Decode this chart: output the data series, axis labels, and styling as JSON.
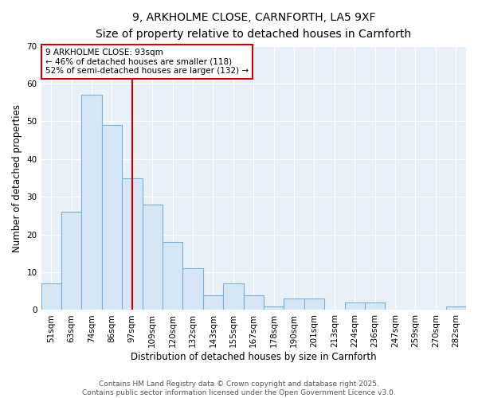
{
  "title_line1": "9, ARKHOLME CLOSE, CARNFORTH, LA5 9XF",
  "title_line2": "Size of property relative to detached houses in Carnforth",
  "xlabel": "Distribution of detached houses by size in Carnforth",
  "ylabel": "Number of detached properties",
  "bins": [
    "51sqm",
    "63sqm",
    "74sqm",
    "86sqm",
    "97sqm",
    "109sqm",
    "120sqm",
    "132sqm",
    "143sqm",
    "155sqm",
    "167sqm",
    "178sqm",
    "190sqm",
    "201sqm",
    "213sqm",
    "224sqm",
    "236sqm",
    "247sqm",
    "259sqm",
    "270sqm",
    "282sqm"
  ],
  "values": [
    7,
    26,
    57,
    49,
    35,
    28,
    18,
    11,
    4,
    7,
    4,
    1,
    3,
    3,
    0,
    2,
    2,
    0,
    0,
    0,
    1
  ],
  "bar_color": "#d6e6f5",
  "bar_edge_color": "#7ab0d8",
  "red_line_index": 4,
  "red_line_color": "#cc0000",
  "annotation_text": "9 ARKHOLME CLOSE: 93sqm\n← 46% of detached houses are smaller (118)\n52% of semi-detached houses are larger (132) →",
  "annotation_box_color": "white",
  "annotation_box_edge_color": "#cc0000",
  "ylim": [
    0,
    70
  ],
  "yticks": [
    0,
    10,
    20,
    30,
    40,
    50,
    60,
    70
  ],
  "footer_line1": "Contains HM Land Registry data © Crown copyright and database right 2025.",
  "footer_line2": "Contains public sector information licensed under the Open Government Licence v3.0.",
  "fig_bg_color": "#ffffff",
  "plot_bg_color": "#e8f0f8",
  "grid_color": "#ffffff",
  "title_fontsize": 10,
  "subtitle_fontsize": 9,
  "label_fontsize": 8.5,
  "tick_fontsize": 7.5,
  "annotation_fontsize": 7.5,
  "footer_fontsize": 6.5
}
